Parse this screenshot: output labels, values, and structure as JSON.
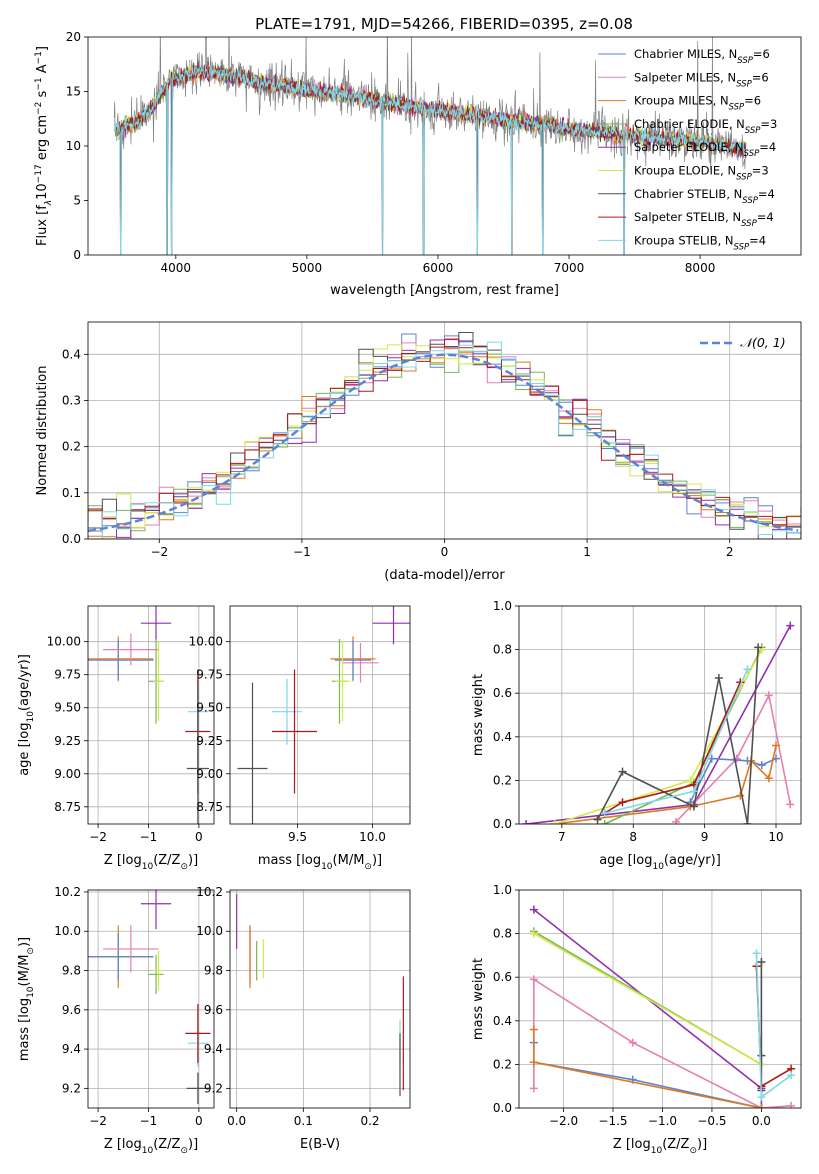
{
  "figure_title": "PLATE=1791, MJD=54266, FIBERID=0395, z=0.08",
  "colors": {
    "Chabrier MILES": "#5b84d6",
    "Salpeter MILES": "#e67fb0",
    "Kroupa MILES": "#e07820",
    "Chabrier ELODIE": "#78b850",
    "Salpeter ELODIE": "#9030b0",
    "Kroupa ELODIE": "#d4e84c",
    "Chabrier STELIB": "#505050",
    "Salpeter STELIB": "#b01818",
    "Kroupa STELIB": "#80d8e8",
    "gauss": "#5b84d6"
  },
  "chart_data": [
    {
      "id": "spectrum",
      "type": "line",
      "title": "PLATE=1791, MJD=54266, FIBERID=0395, z=0.08",
      "xlabel": "wavelength [Angstrom, rest frame]",
      "ylabel_main": "Flux [f",
      "ylabel_sub": "λ",
      "ylabel_rest": "10",
      "ylabel_exp1": "−17",
      "ylabel_mid": " erg cm",
      "ylabel_exp2": "−2",
      "ylabel_mid2": " s",
      "ylabel_exp3": "−1",
      "ylabel_end": " A",
      "ylabel_exp4": "−1",
      "ylabel_close": "]",
      "xlim": [
        3330,
        8770
      ],
      "ylim": [
        0,
        20
      ],
      "xticks": [
        4000,
        5000,
        6000,
        7000,
        8000
      ],
      "yticks": [
        0,
        5,
        10,
        15,
        20
      ],
      "legend_position": "top-right",
      "legend": [
        {
          "name": "Chabrier MILES",
          "label": "Chabrier MILES, N",
          "sub": "SSP",
          "eq": "=6"
        },
        {
          "name": "Salpeter MILES",
          "label": "Salpeter MILES, N",
          "sub": "SSP",
          "eq": "=6"
        },
        {
          "name": "Kroupa MILES",
          "label": "Kroupa MILES, N",
          "sub": "SSP",
          "eq": "=6"
        },
        {
          "name": "Chabrier ELODIE",
          "label": "Chabrier ELODIE, N",
          "sub": "SSP",
          "eq": "=3"
        },
        {
          "name": "Salpeter ELODIE",
          "label": "Salpeter ELODIE, N",
          "sub": "SSP",
          "eq": "=4"
        },
        {
          "name": "Kroupa ELODIE",
          "label": "Kroupa ELODIE, N",
          "sub": "SSP",
          "eq": "=3"
        },
        {
          "name": "Chabrier STELIB",
          "label": "Chabrier STELIB, N",
          "sub": "SSP",
          "eq": "=4"
        },
        {
          "name": "Salpeter STELIB",
          "label": "Salpeter STELIB, N",
          "sub": "SSP",
          "eq": "=4"
        },
        {
          "name": "Kroupa STELIB",
          "label": "Kroupa STELIB, N",
          "sub": "SSP",
          "eq": "=4"
        }
      ],
      "data_anchor_x": [
        3560,
        3650,
        3750,
        3850,
        3950,
        4050,
        4200,
        4400,
        4600,
        4800,
        5000,
        5200,
        5400,
        5600,
        5800,
        6000,
        6200,
        6400,
        6600,
        6800,
        7000,
        7200,
        7400,
        7600,
        7800,
        8000,
        8200,
        8350
      ],
      "data_anchor_y": [
        11.5,
        12.0,
        12.5,
        14.0,
        16.0,
        16.5,
        16.8,
        16.5,
        16.0,
        15.5,
        15.2,
        14.8,
        14.5,
        14.0,
        13.6,
        13.2,
        12.9,
        12.6,
        12.3,
        12.0,
        11.6,
        11.3,
        11.0,
        10.8,
        10.6,
        10.4,
        10.0,
        9.5
      ],
      "absorption_lines_x": [
        3580,
        3934,
        3968,
        5577,
        5890,
        6300,
        6563,
        6800,
        7420
      ]
    },
    {
      "id": "residuals",
      "type": "line",
      "xlabel": "(data-model)/error",
      "ylabel": "Normed distribution",
      "xlim": [
        -2.5,
        2.5
      ],
      "ylim": [
        0,
        0.47
      ],
      "xticks": [
        -2,
        -1,
        0,
        1,
        2
      ],
      "yticks": [
        0.0,
        0.1,
        0.2,
        0.3,
        0.4
      ],
      "ytick_labels": [
        "0.0",
        "0.1",
        "0.2",
        "0.3",
        "0.4"
      ],
      "legend_label": "𝒩(0, 1)",
      "legend_position": "top-right",
      "gaussian": {
        "mu": 0,
        "sigma": 1
      }
    },
    {
      "id": "age_vs_Z",
      "type": "scatter",
      "xlabel": "Z [log",
      "xlabel_sub": "10",
      "xlabel_end": "(Z/Z",
      "xlabel_sun": "⊙",
      "xlabel_close": ")]",
      "ylabel": "age  [log",
      "ylabel_sub": "10",
      "ylabel_end": "(age/yr)]",
      "xlim": [
        -2.2,
        0.3
      ],
      "ylim": [
        8.62,
        10.27
      ],
      "xticks": [
        -2,
        -1,
        0
      ],
      "yticks": [
        8.75,
        9.0,
        9.25,
        9.5,
        9.75,
        10.0
      ],
      "ytick_labels": [
        "8.75",
        "9.00",
        "9.25",
        "9.50",
        "9.75",
        "10.00"
      ],
      "points": [
        {
          "series": "Kroupa MILES",
          "x": -1.6,
          "xerr": 0.7,
          "y": 9.87,
          "yerr": 0.17
        },
        {
          "series": "Chabrier MILES",
          "x": -1.6,
          "xerr": 0.7,
          "y": 9.86,
          "yerr": 0.15
        },
        {
          "series": "Salpeter MILES",
          "x": -1.35,
          "xerr": 0.55,
          "y": 9.94,
          "yerr": 0.12
        },
        {
          "series": "Salpeter ELODIE",
          "x": -0.85,
          "xerr": 0.3,
          "y": 10.14,
          "yerr": 0.13
        },
        {
          "series": "Chabrier ELODIE",
          "x": -0.85,
          "xerr": 0.15,
          "y": 9.7,
          "yerr": 0.32
        },
        {
          "series": "Kroupa ELODIE",
          "x": -0.8,
          "xerr": 0.1,
          "y": 9.7,
          "yerr": 0.3
        },
        {
          "series": "Kroupa STELIB",
          "x": -0.02,
          "xerr": 0.2,
          "y": 9.47,
          "yerr": 0.25
        },
        {
          "series": "Salpeter STELIB",
          "x": -0.02,
          "xerr": 0.25,
          "y": 9.32,
          "yerr": 0.47
        },
        {
          "series": "Chabrier STELIB",
          "x": -0.02,
          "xerr": 0.22,
          "y": 9.04,
          "yerr": 0.65
        }
      ]
    },
    {
      "id": "age_vs_mass",
      "type": "scatter",
      "xlabel": "mass [log",
      "xlabel_sub": "10",
      "xlabel_end": "(M/M",
      "xlabel_sun": "⊙",
      "xlabel_close": ")]",
      "xlim": [
        9.05,
        10.25
      ],
      "ylim": [
        8.62,
        10.27
      ],
      "xticks": [
        9.5,
        10.0
      ],
      "xtick_labels": [
        "9.5",
        "10.0"
      ],
      "yticks": [
        8.75,
        9.0,
        9.25,
        9.5,
        9.75,
        10.0
      ],
      "ytick_labels": [
        "8.75",
        "9.00",
        "9.25",
        "9.50",
        "9.75",
        "10.00"
      ],
      "points": [
        {
          "series": "Salpeter ELODIE",
          "x": 10.14,
          "xerr": 0.14,
          "y": 10.14,
          "yerr": 0.16
        },
        {
          "series": "Salpeter MILES",
          "x": 9.92,
          "xerr": 0.12,
          "y": 9.84,
          "yerr": 0.15
        },
        {
          "series": "Kroupa MILES",
          "x": 9.87,
          "xerr": 0.15,
          "y": 9.87,
          "yerr": 0.17
        },
        {
          "series": "Chabrier MILES",
          "x": 9.87,
          "xerr": 0.12,
          "y": 9.86,
          "yerr": 0.15
        },
        {
          "series": "Chabrier ELODIE",
          "x": 9.78,
          "xerr": 0.05,
          "y": 9.7,
          "yerr": 0.32
        },
        {
          "series": "Kroupa ELODIE",
          "x": 9.8,
          "xerr": 0.05,
          "y": 9.7,
          "yerr": 0.3
        },
        {
          "series": "Kroupa STELIB",
          "x": 9.43,
          "xerr": 0.1,
          "y": 9.47,
          "yerr": 0.25
        },
        {
          "series": "Salpeter STELIB",
          "x": 9.48,
          "xerr": 0.15,
          "y": 9.32,
          "yerr": 0.47
        },
        {
          "series": "Chabrier STELIB",
          "x": 9.2,
          "xerr": 0.1,
          "y": 9.04,
          "yerr": 0.65
        }
      ]
    },
    {
      "id": "weight_vs_age",
      "type": "line",
      "xlabel": "age  [log",
      "xlabel_sub": "10",
      "xlabel_end": "(age/yr)]",
      "ylabel": "mass weight",
      "xlim": [
        6.4,
        10.35
      ],
      "ylim": [
        0,
        1.0
      ],
      "xticks": [
        7,
        8,
        9,
        10
      ],
      "yticks": [
        0.0,
        0.2,
        0.4,
        0.6,
        0.8,
        1.0
      ],
      "ytick_labels": [
        "0.0",
        "0.2",
        "0.4",
        "0.6",
        "0.8",
        "1.0"
      ],
      "series": [
        {
          "name": "Salpeter ELODIE",
          "x": [
            6.5,
            8.85,
            10.2
          ],
          "y": [
            0.0,
            0.09,
            0.91
          ]
        },
        {
          "name": "Salpeter MILES",
          "x": [
            8.6,
            9.45,
            9.9,
            10.2
          ],
          "y": [
            0.01,
            0.3,
            0.59,
            0.09
          ]
        },
        {
          "name": "Chabrier MILES",
          "x": [
            8.8,
            9.1,
            9.6,
            9.8,
            10.0
          ],
          "y": [
            0.1,
            0.3,
            0.29,
            0.27,
            0.3
          ]
        },
        {
          "name": "Kroupa MILES",
          "x": [
            6.9,
            8.8,
            9.5,
            9.65,
            9.9,
            10.0
          ],
          "y": [
            0.0,
            0.08,
            0.13,
            0.29,
            0.21,
            0.36
          ]
        },
        {
          "name": "Chabrier ELODIE",
          "x": [
            7.6,
            8.85,
            9.8
          ],
          "y": [
            0.0,
            0.19,
            0.81
          ]
        },
        {
          "name": "Kroupa ELODIE",
          "x": [
            6.9,
            8.8,
            9.8
          ],
          "y": [
            0.0,
            0.2,
            0.8
          ]
        },
        {
          "name": "Chabrier STELIB",
          "x": [
            7.5,
            7.85,
            8.85,
            9.2,
            9.6,
            9.75
          ],
          "y": [
            0.02,
            0.24,
            0.08,
            0.67,
            0.0,
            0.81
          ]
        },
        {
          "name": "Salpeter STELIB",
          "x": [
            7.6,
            7.85,
            8.85,
            9.5
          ],
          "y": [
            0.05,
            0.1,
            0.18,
            0.65
          ]
        },
        {
          "name": "Kroupa STELIB",
          "x": [
            7.6,
            8.85,
            9.6
          ],
          "y": [
            0.05,
            0.15,
            0.71
          ]
        }
      ]
    },
    {
      "id": "mass_vs_Z",
      "type": "scatter",
      "xlabel": "Z [log",
      "xlabel_sub": "10",
      "xlabel_end": "(Z/Z",
      "xlabel_sun": "⊙",
      "xlabel_close": ")]",
      "ylabel": "mass [log",
      "ylabel_sub": "10",
      "ylabel_end": "(M/M",
      "ylabel_sun": "⊙",
      "ylabel_close": ")]",
      "xlim": [
        -2.2,
        0.3
      ],
      "ylim": [
        9.1,
        10.21
      ],
      "xticks": [
        -2,
        -1,
        0
      ],
      "yticks": [
        9.2,
        9.4,
        9.6,
        9.8,
        10.0,
        10.2
      ],
      "ytick_labels": [
        "9.2",
        "9.4",
        "9.6",
        "9.8",
        "10.0",
        "10.2"
      ],
      "points": [
        {
          "series": "Kroupa MILES",
          "x": -1.6,
          "xerr": 0.7,
          "y": 9.87,
          "yerr": 0.16
        },
        {
          "series": "Chabrier MILES",
          "x": -1.6,
          "xerr": 0.7,
          "y": 9.87,
          "yerr": 0.12
        },
        {
          "series": "Salpeter MILES",
          "x": -1.35,
          "xerr": 0.55,
          "y": 9.91,
          "yerr": 0.12
        },
        {
          "series": "Salpeter ELODIE",
          "x": -0.85,
          "xerr": 0.3,
          "y": 10.14,
          "yerr": 0.13
        },
        {
          "series": "Chabrier ELODIE",
          "x": -0.85,
          "xerr": 0.15,
          "y": 9.78,
          "yerr": 0.1
        },
        {
          "series": "Kroupa ELODIE",
          "x": -0.8,
          "xerr": 0.1,
          "y": 9.8,
          "yerr": 0.1
        },
        {
          "series": "Kroupa STELIB",
          "x": -0.02,
          "xerr": 0.2,
          "y": 9.43,
          "yerr": 0.12
        },
        {
          "series": "Salpeter STELIB",
          "x": -0.02,
          "xerr": 0.25,
          "y": 9.48,
          "yerr": 0.15
        },
        {
          "series": "Chabrier STELIB",
          "x": -0.02,
          "xerr": 0.22,
          "y": 9.2,
          "yerr": 0.08
        }
      ]
    },
    {
      "id": "mass_vs_ebv",
      "type": "scatter",
      "xlabel": "E(B-V)",
      "xlim": [
        -0.01,
        0.26
      ],
      "ylim": [
        9.1,
        10.21
      ],
      "xticks": [
        0.0,
        0.1,
        0.2
      ],
      "xtick_labels": [
        "0.0",
        "0.1",
        "0.2"
      ],
      "yticks": [
        9.2,
        9.4,
        9.6,
        9.8,
        10.0,
        10.2
      ],
      "ytick_labels": [
        "9.2",
        "9.4",
        "9.6",
        "9.8",
        "10.0",
        "10.2"
      ],
      "points": [
        {
          "series": "Salpeter ELODIE",
          "x": 0.0,
          "y": 10.05,
          "yerr": 0.14
        },
        {
          "series": "Chabrier MILES",
          "x": 0.02,
          "y": 9.87,
          "yerr": 0.14
        },
        {
          "series": "Salpeter MILES",
          "x": 0.02,
          "y": 9.91,
          "yerr": 0.12
        },
        {
          "series": "Kroupa MILES",
          "x": 0.02,
          "y": 9.87,
          "yerr": 0.16
        },
        {
          "series": "Chabrier ELODIE",
          "x": 0.03,
          "y": 9.85,
          "yerr": 0.1
        },
        {
          "series": "Kroupa ELODIE",
          "x": 0.04,
          "y": 9.86,
          "yerr": 0.1
        },
        {
          "series": "Kroupa STELIB",
          "x": 0.245,
          "y": 9.43,
          "yerr": 0.12
        },
        {
          "series": "Salpeter STELIB",
          "x": 0.25,
          "y": 9.48,
          "yerr": 0.29
        },
        {
          "series": "Chabrier STELIB",
          "x": 0.245,
          "y": 9.32,
          "yerr": 0.16
        }
      ]
    },
    {
      "id": "weight_vs_Z",
      "type": "line",
      "xlabel": "Z [log",
      "xlabel_sub": "10",
      "xlabel_end": "(Z/Z",
      "xlabel_sun": "⊙",
      "xlabel_close": ")]",
      "ylabel": "mass weight",
      "xlim": [
        -2.45,
        0.4
      ],
      "ylim": [
        0,
        1.0
      ],
      "xticks": [
        -2.0,
        -1.5,
        -1.0,
        -0.5,
        0.0
      ],
      "xtick_labels": [
        "−2.0",
        "−1.5",
        "−1.0",
        "−0.5",
        "0.0"
      ],
      "yticks": [
        0.0,
        0.2,
        0.4,
        0.6,
        0.8,
        1.0
      ],
      "ytick_labels": [
        "0.0",
        "0.2",
        "0.4",
        "0.6",
        "0.8",
        "1.0"
      ],
      "series": [
        {
          "name": "Salpeter ELODIE",
          "x": [
            -2.3,
            0.0,
            0.0
          ],
          "y": [
            0.91,
            0.09,
            0.0
          ]
        },
        {
          "name": "Salpeter MILES",
          "x": [
            -2.3,
            -2.3,
            -1.3,
            0.0,
            0.3
          ],
          "y": [
            0.09,
            0.59,
            0.3,
            0.0,
            0.01
          ]
        },
        {
          "name": "Chabrier MILES",
          "x": [
            -2.3,
            -2.3,
            -1.3,
            0.0
          ],
          "y": [
            0.3,
            0.21,
            0.13,
            0.0
          ]
        },
        {
          "name": "Kroupa MILES",
          "x": [
            -2.3,
            -2.3,
            0.0
          ],
          "y": [
            0.36,
            0.21,
            0.0
          ]
        },
        {
          "name": "Chabrier ELODIE",
          "x": [
            -2.3,
            0.0
          ],
          "y": [
            0.81,
            0.2
          ]
        },
        {
          "name": "Kroupa ELODIE",
          "x": [
            -2.3,
            0.0
          ],
          "y": [
            0.8,
            0.2
          ]
        },
        {
          "name": "Chabrier STELIB",
          "x": [
            0.0,
            0.0,
            0.0
          ],
          "y": [
            0.67,
            0.24,
            0.08
          ]
        },
        {
          "name": "Salpeter STELIB",
          "x": [
            -0.05,
            0.0,
            0.3
          ],
          "y": [
            0.65,
            0.1,
            0.18
          ]
        },
        {
          "name": "Kroupa STELIB",
          "x": [
            -0.05,
            0.0,
            0.3
          ],
          "y": [
            0.71,
            0.05,
            0.15
          ]
        }
      ]
    }
  ]
}
